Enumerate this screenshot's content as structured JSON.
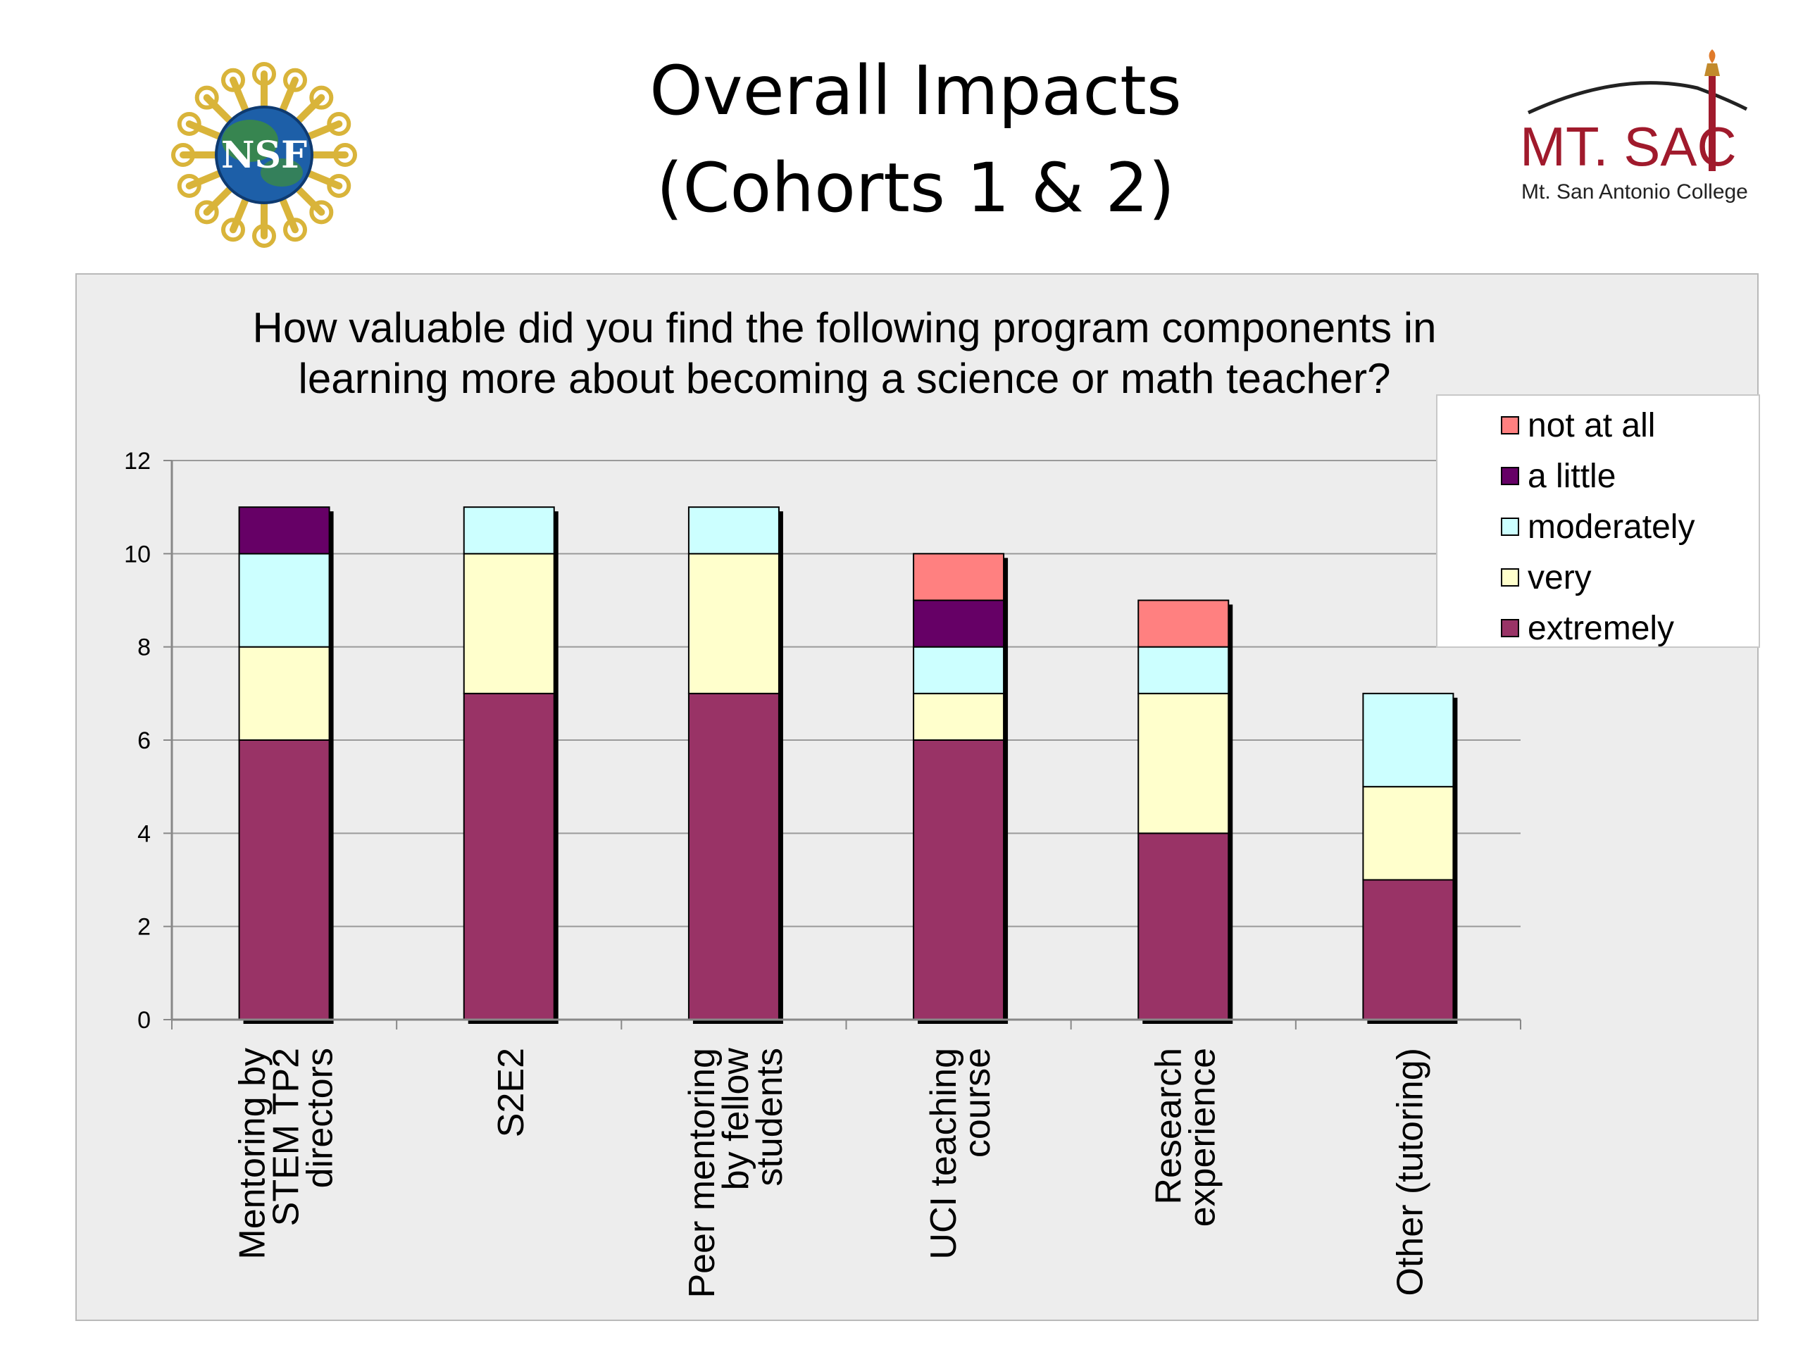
{
  "slide": {
    "title_line1": "Overall Impacts",
    "title_line2": "(Cohorts 1 & 2)",
    "left_logo_text": "NSF",
    "right_logo_text": "MT. SAC",
    "right_logo_subtext": "Mt. San Antonio College"
  },
  "chart_data": {
    "type": "bar",
    "stacked": true,
    "title_line1": "How valuable did you find the following program components in",
    "title_line2": "learning more about becoming a science or math teacher?",
    "categories": [
      [
        "Mentoring by",
        "STEM TP2",
        "directors"
      ],
      [
        "S2E2"
      ],
      [
        "Peer mentoring",
        "by fellow",
        "students"
      ],
      [
        "UCI teaching",
        "course"
      ],
      [
        "Research",
        "experience"
      ],
      [
        "Other (tutoring)"
      ]
    ],
    "series": [
      {
        "name": "extremely",
        "color": "#993366",
        "values": [
          6,
          7,
          7,
          6,
          4,
          3
        ]
      },
      {
        "name": "very",
        "color": "#ffffcc",
        "values": [
          2,
          3,
          3,
          1,
          3,
          2
        ]
      },
      {
        "name": "moderately",
        "color": "#ccffff",
        "values": [
          2,
          1,
          1,
          1,
          1,
          2
        ]
      },
      {
        "name": "a little",
        "color": "#660066",
        "values": [
          1,
          0,
          0,
          1,
          0,
          0
        ]
      },
      {
        "name": "not at all",
        "color": "#ff8080",
        "values": [
          0,
          0,
          0,
          1,
          1,
          0
        ]
      }
    ],
    "legend_order": [
      "not at all",
      "a little",
      "moderately",
      "very",
      "extremely"
    ],
    "ylim": [
      0,
      12
    ],
    "yticks": [
      0,
      2,
      4,
      6,
      8,
      10,
      12
    ],
    "grid": true,
    "legend_position": "right"
  }
}
